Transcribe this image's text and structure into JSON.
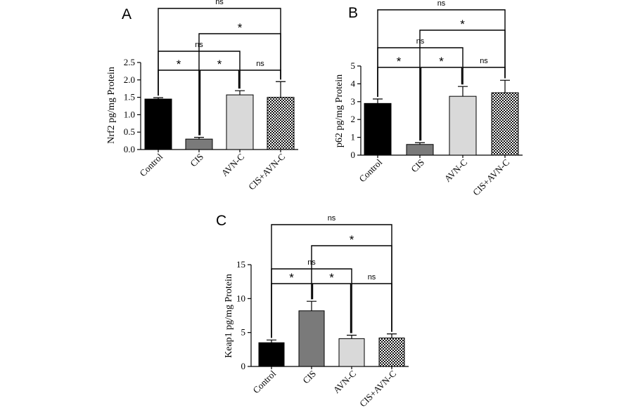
{
  "colors": {
    "control": "#000000",
    "cis": "#7a7a7a",
    "avn": "#d9d9d9",
    "cis_avn": "checker-pattern"
  },
  "chart_data": [
    {
      "type": "bar",
      "panel": "A",
      "categories": [
        "Control",
        "CIS",
        "AVN-C",
        "CIS+AVN-C"
      ],
      "values": [
        1.45,
        0.3,
        1.57,
        1.5
      ],
      "errors": [
        0.04,
        0.05,
        0.12,
        0.45
      ],
      "ylabel": "Nrf2 pg/mg Protein",
      "ylim": [
        0,
        2.5
      ],
      "yticks": [
        "0.0",
        "0.5",
        "1.0",
        "1.5",
        "2.0",
        "2.5"
      ],
      "comparisons": [
        {
          "from": 0,
          "to": 3,
          "label": "ns"
        },
        {
          "from": 1,
          "to": 3,
          "label": "*"
        },
        {
          "from": 0,
          "to": 2,
          "label": "ns"
        },
        {
          "from": 0,
          "to": 1,
          "label": "*"
        },
        {
          "from": 1,
          "to": 2,
          "label": "*"
        },
        {
          "from": 2,
          "to": 3,
          "label": "ns"
        }
      ]
    },
    {
      "type": "bar",
      "panel": "B",
      "categories": [
        "Control",
        "CIS",
        "AVN-C",
        "CIS+AVN-C"
      ],
      "values": [
        2.9,
        0.6,
        3.3,
        3.5
      ],
      "errors": [
        0.25,
        0.1,
        0.55,
        0.7
      ],
      "ylabel": "p62 pg/mg Protein",
      "ylim": [
        0,
        5
      ],
      "yticks": [
        "0",
        "1",
        "2",
        "3",
        "4",
        "5"
      ],
      "comparisons": [
        {
          "from": 0,
          "to": 3,
          "label": "ns"
        },
        {
          "from": 1,
          "to": 3,
          "label": "*"
        },
        {
          "from": 0,
          "to": 2,
          "label": "ns"
        },
        {
          "from": 0,
          "to": 1,
          "label": "*"
        },
        {
          "from": 1,
          "to": 2,
          "label": "*"
        },
        {
          "from": 2,
          "to": 3,
          "label": "ns"
        }
      ]
    },
    {
      "type": "bar",
      "panel": "C",
      "categories": [
        "Control",
        "CIS",
        "AVN-C",
        "CIS+AVN-C"
      ],
      "values": [
        3.5,
        8.2,
        4.1,
        4.2
      ],
      "errors": [
        0.4,
        1.4,
        0.5,
        0.6
      ],
      "ylabel": "Keap1 pg/mg Protein",
      "ylim": [
        0,
        15
      ],
      "yticks": [
        "0",
        "5",
        "10",
        "15"
      ],
      "comparisons": [
        {
          "from": 0,
          "to": 3,
          "label": "ns"
        },
        {
          "from": 1,
          "to": 3,
          "label": "*"
        },
        {
          "from": 0,
          "to": 2,
          "label": "ns"
        },
        {
          "from": 0,
          "to": 1,
          "label": "*"
        },
        {
          "from": 1,
          "to": 2,
          "label": "*"
        },
        {
          "from": 2,
          "to": 3,
          "label": "ns"
        }
      ]
    }
  ]
}
